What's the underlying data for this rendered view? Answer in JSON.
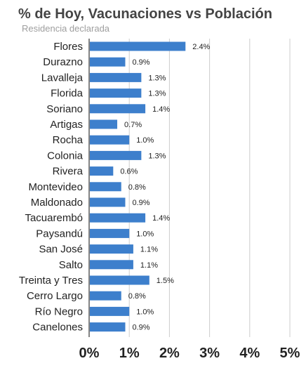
{
  "chart_data": {
    "type": "bar",
    "orientation": "horizontal",
    "title": "% de Hoy, Vacunaciones vs Población",
    "subtitle": "Residencia declarada",
    "xlabel": "",
    "ylabel": "",
    "categories": [
      "Flores",
      "Durazno",
      "Lavalleja",
      "Florida",
      "Soriano",
      "Artigas",
      "Rocha",
      "Colonia",
      "Rivera",
      "Montevideo",
      "Maldonado",
      "Tacuarembó",
      "Paysandú",
      "San José",
      "Salto",
      "Treinta y Tres",
      "Cerro Largo",
      "Río Negro",
      "Canelones"
    ],
    "values": [
      2.4,
      0.9,
      1.3,
      1.3,
      1.4,
      0.7,
      1.0,
      1.3,
      0.6,
      0.8,
      0.9,
      1.4,
      1.0,
      1.1,
      1.1,
      1.5,
      0.8,
      1.0,
      0.9
    ],
    "value_labels": [
      "2.4%",
      "0.9%",
      "1.3%",
      "1.3%",
      "1.4%",
      "0.7%",
      "1.0%",
      "1.3%",
      "0.6%",
      "0.8%",
      "0.9%",
      "1.4%",
      "1.0%",
      "1.1%",
      "1.1%",
      "1.5%",
      "0.8%",
      "1.0%",
      "0.9%"
    ],
    "x_ticks": [
      "0%",
      "1%",
      "2%",
      "3%",
      "4%",
      "5%"
    ],
    "xlim": [
      0,
      5
    ],
    "grid": true,
    "legend": "none",
    "bar_color": "#3d7fcc"
  }
}
